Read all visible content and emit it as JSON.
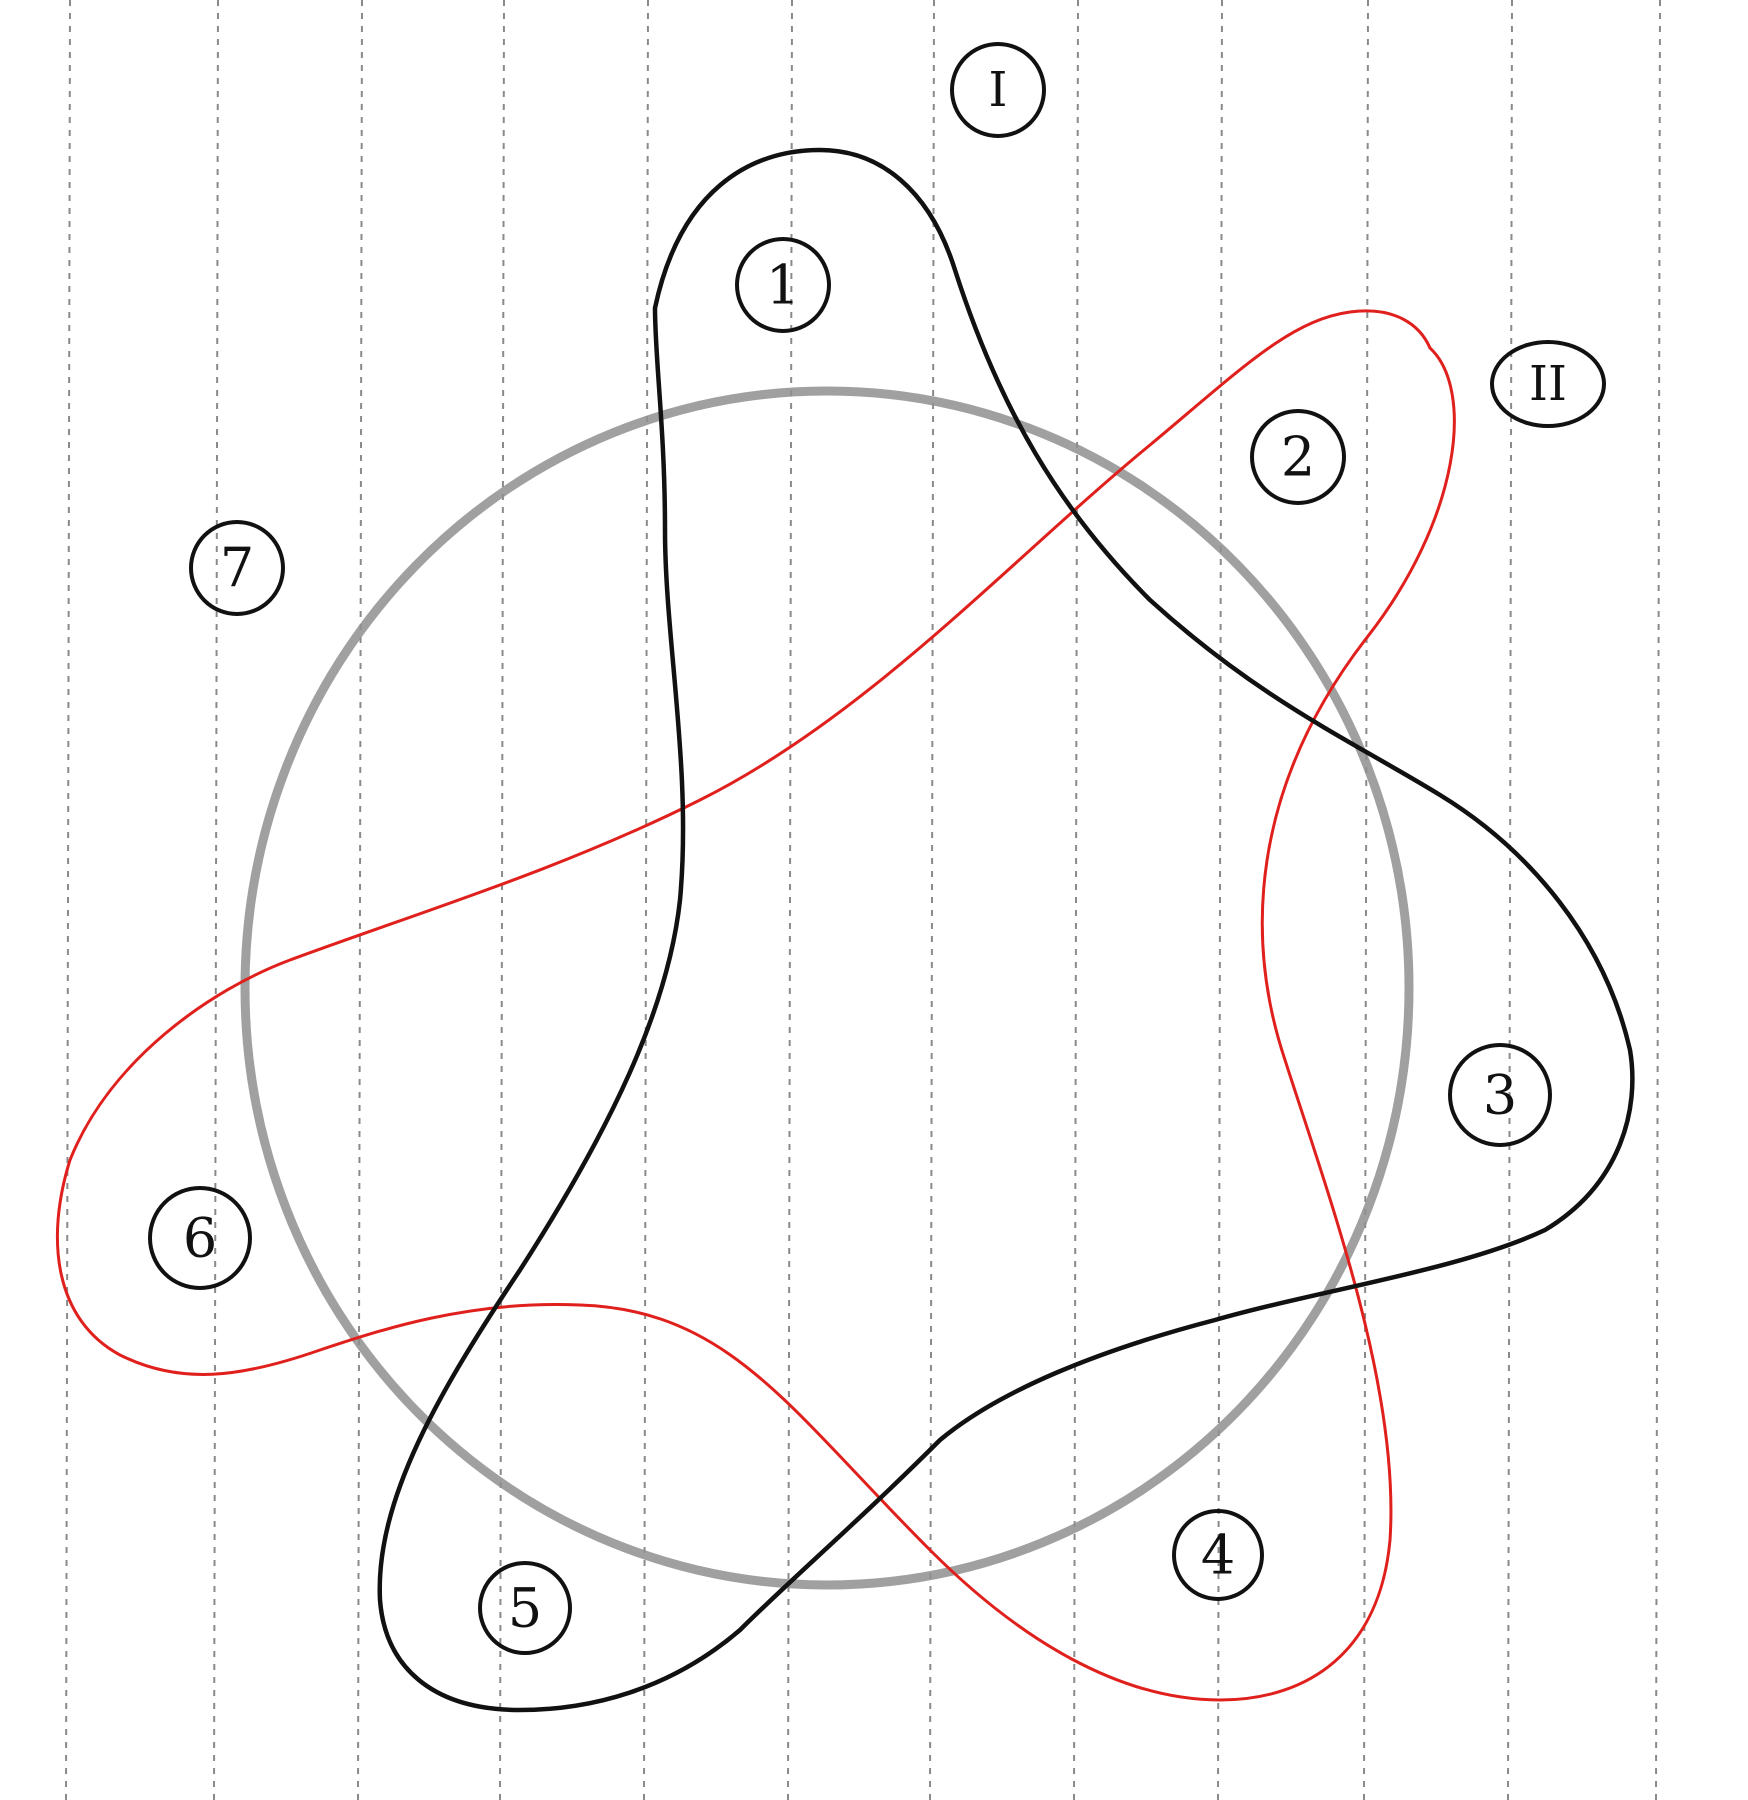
{
  "diagram": {
    "set_labels": [
      "I",
      "II"
    ],
    "region_labels": [
      "1",
      "2",
      "3",
      "4",
      "5",
      "6",
      "7"
    ],
    "colors": {
      "paper": "#ffffff",
      "rule": "#8a8a8a",
      "ink": "#111111",
      "set_I_curve": "#111111",
      "set_II_curve": "#e0201c",
      "circle": "#8f8f8f"
    }
  }
}
